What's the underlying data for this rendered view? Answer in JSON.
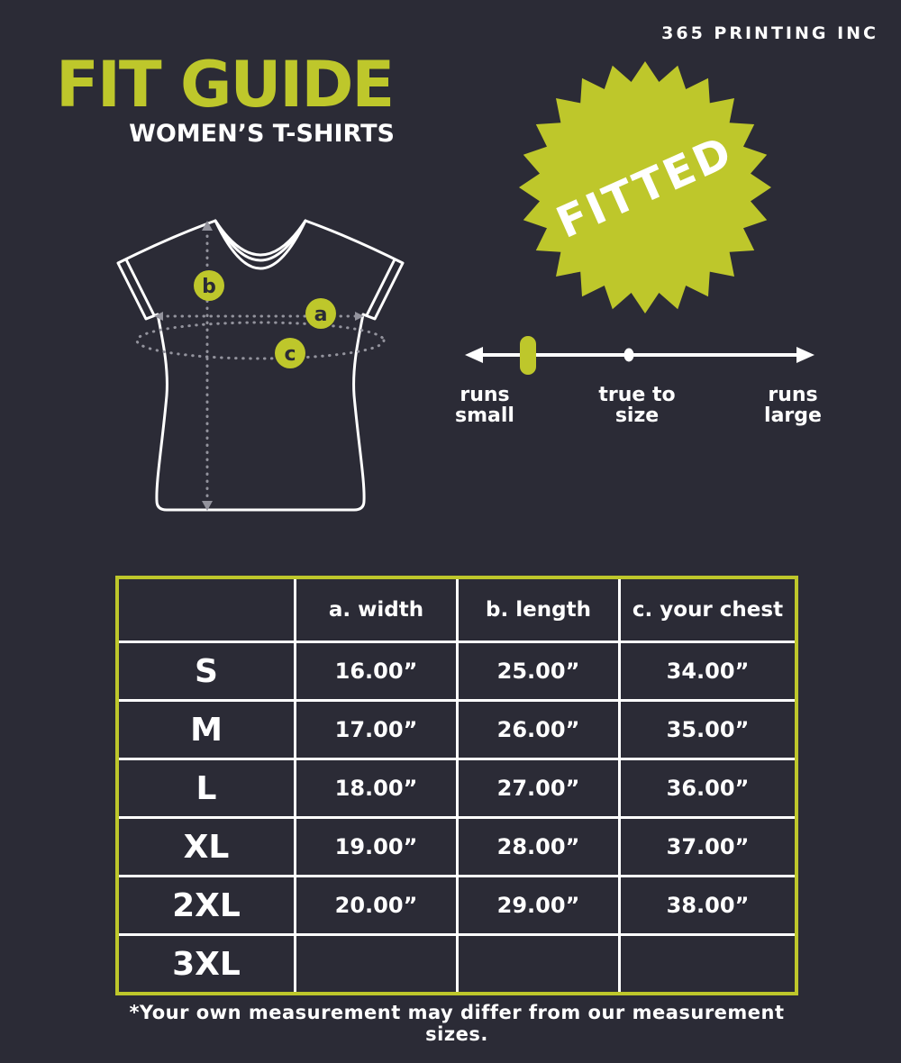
{
  "brand": "365 PRINTING INC",
  "header": {
    "title": "FIT GUIDE",
    "subtitle": "WOMEN’S T-SHIRTS"
  },
  "badge": {
    "label": "FITTED"
  },
  "colors": {
    "background": "#2b2b36",
    "accent": "#bec72b",
    "text": "#ffffff",
    "dashed_gray": "#93939d"
  },
  "diagram": {
    "markers": [
      {
        "letter": "b",
        "meaning": "length"
      },
      {
        "letter": "a",
        "meaning": "width"
      },
      {
        "letter": "c",
        "meaning": "your chest"
      }
    ]
  },
  "scale": {
    "marker_position": "runs-small",
    "labels": [
      {
        "line1": "runs",
        "line2": "small"
      },
      {
        "line1": "true to",
        "line2": "size"
      },
      {
        "line1": "runs",
        "line2": "large"
      }
    ]
  },
  "table": {
    "headers": [
      "",
      "a. width",
      "b. length",
      "c. your chest"
    ],
    "rows": [
      {
        "size": "S",
        "width": "16.00”",
        "length": "25.00”",
        "chest": "34.00”"
      },
      {
        "size": "M",
        "width": "17.00”",
        "length": "26.00”",
        "chest": "35.00”"
      },
      {
        "size": "L",
        "width": "18.00”",
        "length": "27.00”",
        "chest": "36.00”"
      },
      {
        "size": "XL",
        "width": "19.00”",
        "length": "28.00”",
        "chest": "37.00”"
      },
      {
        "size": "2XL",
        "width": "20.00”",
        "length": "29.00”",
        "chest": "38.00”"
      },
      {
        "size": "3XL",
        "width": "",
        "length": "",
        "chest": ""
      }
    ]
  },
  "footnote": "*Your own measurement may differ from our measurement sizes."
}
